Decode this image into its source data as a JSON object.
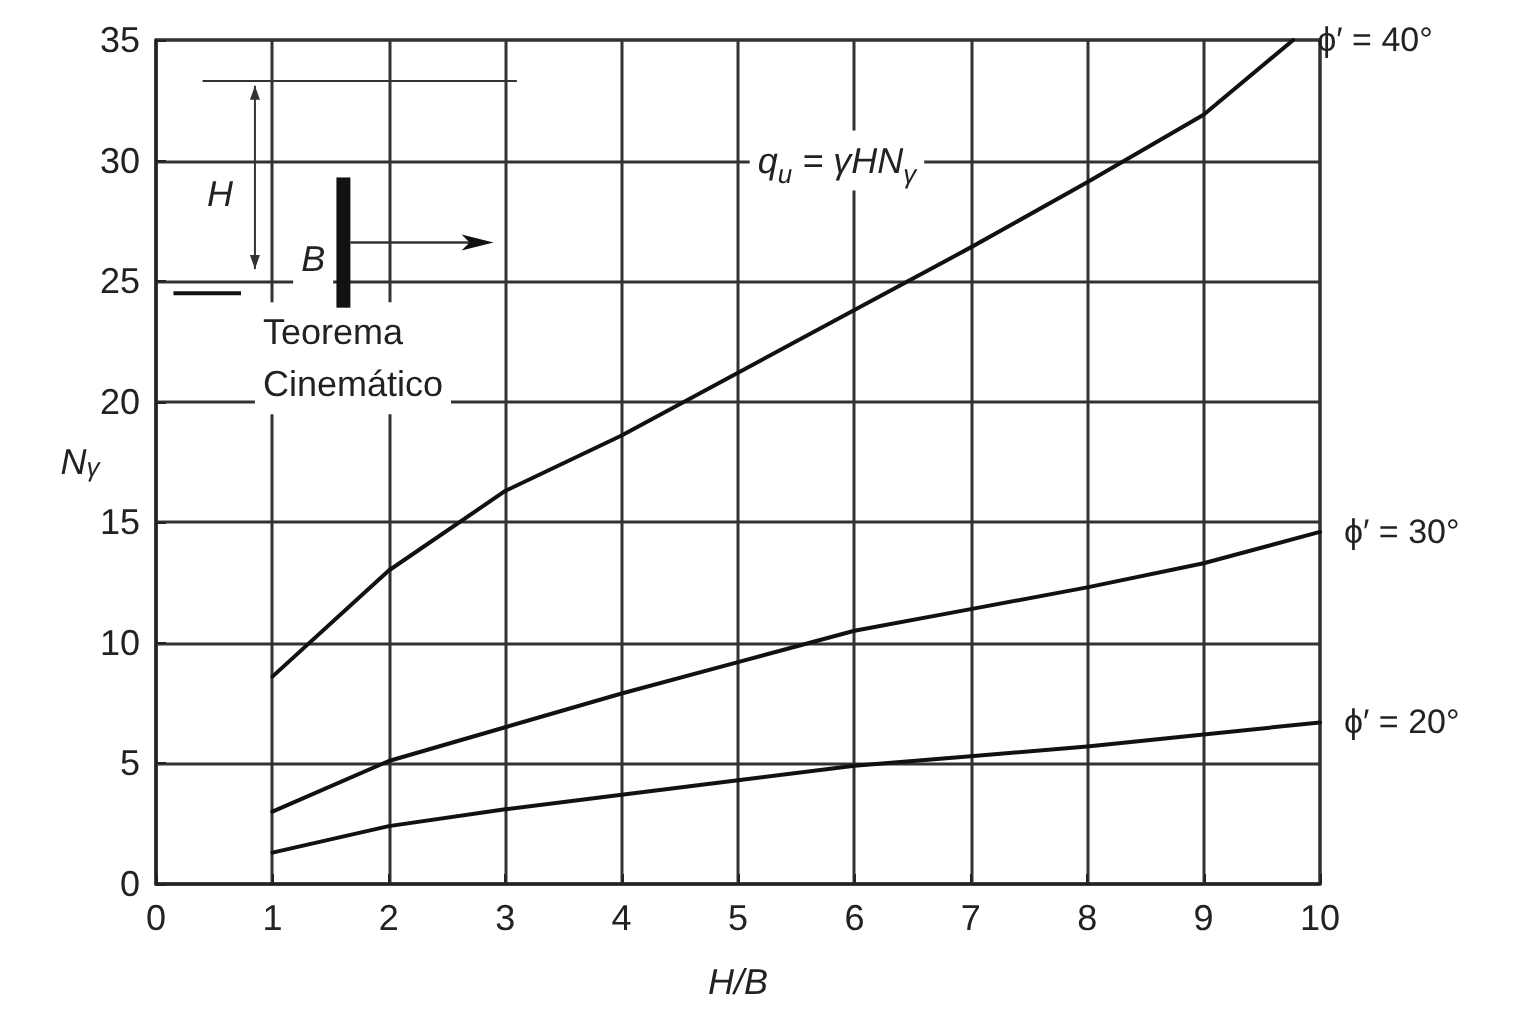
{
  "chart_data": {
    "type": "line",
    "xlabel": "H/B",
    "ylabel": "N$_{γ}$",
    "x": [
      1,
      2,
      3,
      4,
      5,
      6,
      7,
      8,
      9,
      10
    ],
    "series": [
      {
        "name": "ϕ′ = 40°",
        "color": "#111111",
        "x": [
          1,
          2,
          3,
          4,
          5,
          6,
          7,
          8,
          9,
          9.77
        ],
        "values": [
          8.6,
          13,
          16.3,
          18.6,
          21.2,
          23.8,
          26.4,
          29.1,
          31.9,
          35
        ]
      },
      {
        "name": "ϕ′ = 30°",
        "color": "#111111",
        "values": [
          3.0,
          5.1,
          6.5,
          7.9,
          9.2,
          10.5,
          11.4,
          12.3,
          13.3,
          14.6
        ]
      },
      {
        "name": "ϕ′ = 20°",
        "color": "#111111",
        "values": [
          1.3,
          2.4,
          3.1,
          3.7,
          4.3,
          4.9,
          5.3,
          5.7,
          6.2,
          6.7
        ]
      }
    ],
    "xlim": [
      0,
      10
    ],
    "xticks": [
      0,
      1,
      2,
      3,
      4,
      5,
      6,
      7,
      8,
      9,
      10
    ],
    "ylim": [
      0,
      35
    ],
    "yticks": [
      0,
      5,
      10,
      15,
      20,
      25,
      30,
      35
    ],
    "grid": true,
    "marker": "none",
    "line_style": "solid",
    "annotations": [
      "H",
      "B",
      "q$_{u}$ = γHN$_{γ}$",
      "Teorema\nCinemático"
    ]
  }
}
